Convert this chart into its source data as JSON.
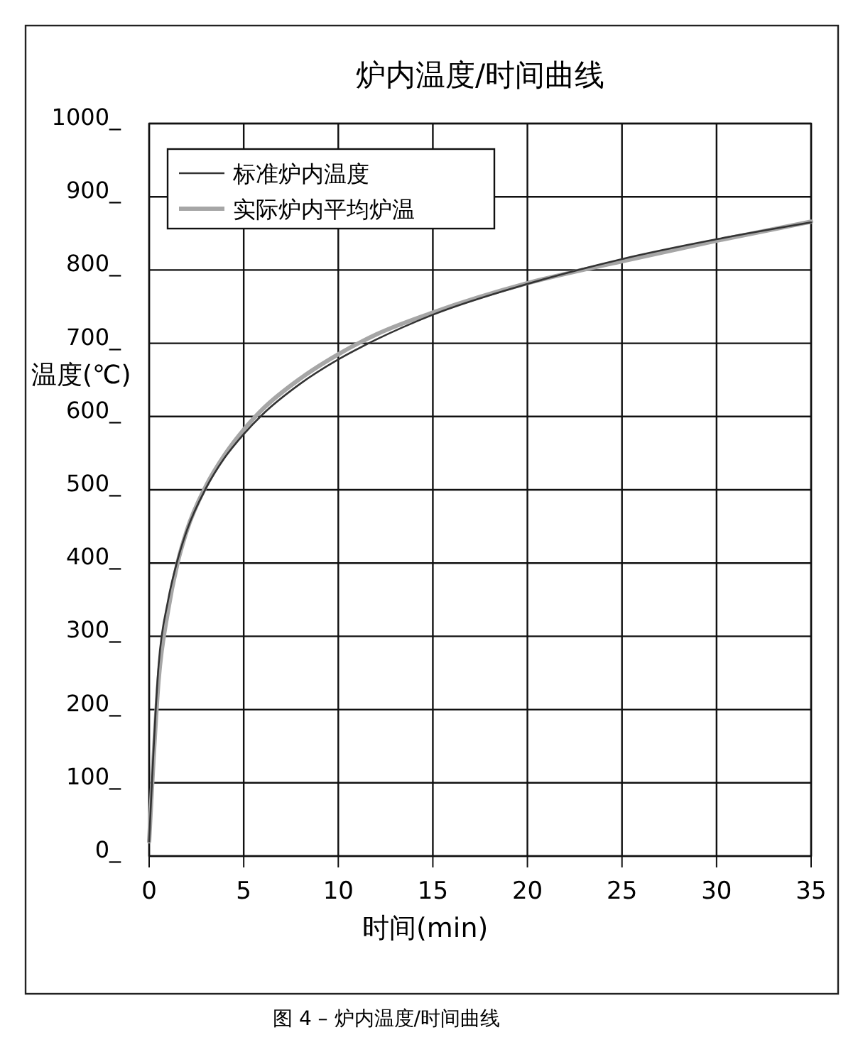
{
  "chart_data": {
    "type": "line",
    "title": "炉内温度/时间曲线",
    "xlabel": "时间(min)",
    "ylabel": "温度(℃)",
    "annotations": [
      "图 4 – 炉内温度/时间曲线"
    ],
    "xlim": [
      0,
      35
    ],
    "xticks": [
      0,
      5,
      10,
      15,
      20,
      25,
      30,
      35
    ],
    "ylim": [
      0,
      1000
    ],
    "yticks": [
      {
        "value": 0,
        "label": "0_"
      },
      {
        "value": 100,
        "label": "100_"
      },
      {
        "value": 200,
        "label": "200_"
      },
      {
        "value": 300,
        "label": "300_"
      },
      {
        "value": 400,
        "label": "400_"
      },
      {
        "value": 500,
        "label": "500_"
      },
      {
        "value": 600,
        "label": "600_"
      },
      {
        "value": 700,
        "label": "700_"
      },
      {
        "value": 800,
        "label": "800_"
      },
      {
        "value": 900,
        "label": "900_"
      },
      {
        "value": 1000,
        "label": "1000_"
      }
    ],
    "grid": true,
    "legend": "top left",
    "marker": "none",
    "line_style": "solid",
    "series": [
      {
        "name": "标准炉内温度",
        "color": "#333333",
        "x": [
          0,
          0.5,
          1,
          1.5,
          2,
          3,
          4,
          5,
          6,
          8,
          10,
          12,
          15,
          20,
          25,
          30,
          35
        ],
        "values": [
          20,
          261,
          349,
          404,
          445,
          502,
          544,
          576,
          603,
          645,
          678,
          705,
          739,
          781,
          815,
          842,
          865
        ]
      },
      {
        "name": "实际炉内平均炉温",
        "color": "#a6a6a6",
        "x": [
          0,
          0.5,
          1,
          1.5,
          2,
          3,
          4,
          5,
          6,
          8,
          10,
          12,
          15,
          20,
          25,
          30,
          35
        ],
        "values": [
          20,
          240,
          335,
          400,
          445,
          505,
          548,
          582,
          610,
          652,
          685,
          712,
          742,
          782,
          812,
          840,
          866
        ]
      }
    ]
  }
}
